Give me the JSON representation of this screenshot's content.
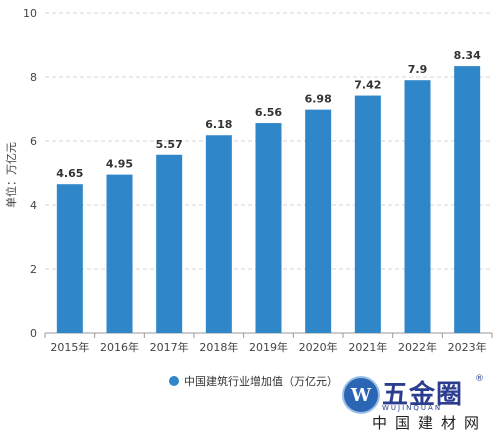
{
  "chart_data": {
    "type": "bar",
    "categories": [
      "2015年",
      "2016年",
      "2017年",
      "2018年",
      "2019年",
      "2020年",
      "2021年",
      "2022年",
      "2023年"
    ],
    "series": [
      {
        "name": "中国建筑行业增加值（万亿元）",
        "values": [
          4.65,
          4.95,
          5.57,
          6.18,
          6.56,
          6.98,
          7.42,
          7.9,
          8.34
        ],
        "labels": [
          "4.65",
          "4.95",
          "5.57",
          "6.18",
          "6.56",
          "6.98",
          "7.42",
          "7.9",
          "8.34"
        ],
        "color": "#2f86c9"
      }
    ],
    "ylabel": "单位：万亿元",
    "ylim": [
      0,
      10
    ],
    "yticks": [
      0,
      2,
      4,
      6,
      8,
      10
    ],
    "grid": "horizontal-dashed",
    "legend": "bottom-center"
  },
  "watermark": {
    "badge_glyph": "W",
    "brand": "五金圈",
    "registered": "®",
    "sub_text": "WUJINQUAN",
    "site_text": "中国建材网"
  }
}
